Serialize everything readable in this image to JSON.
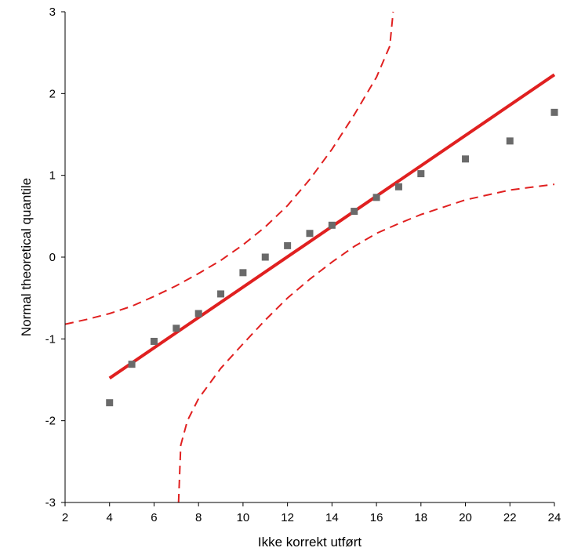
{
  "chart_data": {
    "type": "scatter",
    "title": "",
    "xlabel": "Ikke korrekt utført",
    "ylabel": "Normal theoretical quantile",
    "xlim": [
      2,
      24
    ],
    "ylim": [
      -3,
      3
    ],
    "xticks": [
      2,
      4,
      6,
      8,
      10,
      12,
      14,
      16,
      18,
      20,
      22,
      24
    ],
    "yticks": [
      -3,
      -2,
      -1,
      0,
      1,
      2,
      3
    ],
    "grid": false,
    "points": [
      {
        "x": 4,
        "y": -1.78
      },
      {
        "x": 5,
        "y": -1.31
      },
      {
        "x": 6,
        "y": -1.03
      },
      {
        "x": 7,
        "y": -0.87
      },
      {
        "x": 8,
        "y": -0.69
      },
      {
        "x": 9,
        "y": -0.45
      },
      {
        "x": 10,
        "y": -0.19
      },
      {
        "x": 11,
        "y": 0.0
      },
      {
        "x": 12,
        "y": 0.14
      },
      {
        "x": 13,
        "y": 0.29
      },
      {
        "x": 14,
        "y": 0.39
      },
      {
        "x": 15,
        "y": 0.56
      },
      {
        "x": 16,
        "y": 0.73
      },
      {
        "x": 17,
        "y": 0.86
      },
      {
        "x": 18,
        "y": 1.02
      },
      {
        "x": 20,
        "y": 1.2
      },
      {
        "x": 22,
        "y": 1.42
      },
      {
        "x": 24,
        "y": 1.77
      }
    ],
    "fit_line": {
      "x": [
        4,
        24
      ],
      "y": [
        -1.48,
        2.23
      ]
    },
    "upper_band": [
      {
        "x": 2,
        "y": -0.82
      },
      {
        "x": 3,
        "y": -0.76
      },
      {
        "x": 4,
        "y": -0.69
      },
      {
        "x": 5,
        "y": -0.6
      },
      {
        "x": 6,
        "y": -0.48
      },
      {
        "x": 7,
        "y": -0.35
      },
      {
        "x": 8,
        "y": -0.2
      },
      {
        "x": 9,
        "y": -0.04
      },
      {
        "x": 10,
        "y": 0.15
      },
      {
        "x": 11,
        "y": 0.37
      },
      {
        "x": 12,
        "y": 0.63
      },
      {
        "x": 13,
        "y": 0.95
      },
      {
        "x": 14,
        "y": 1.32
      },
      {
        "x": 15,
        "y": 1.74
      },
      {
        "x": 16,
        "y": 2.2
      },
      {
        "x": 16.6,
        "y": 2.58
      },
      {
        "x": 16.75,
        "y": 3.0
      }
    ],
    "lower_band": [
      {
        "x": 7.1,
        "y": -3.0
      },
      {
        "x": 7.2,
        "y": -2.3
      },
      {
        "x": 7.5,
        "y": -2.0
      },
      {
        "x": 8,
        "y": -1.73
      },
      {
        "x": 9,
        "y": -1.36
      },
      {
        "x": 10,
        "y": -1.06
      },
      {
        "x": 11,
        "y": -0.77
      },
      {
        "x": 12,
        "y": -0.5
      },
      {
        "x": 13,
        "y": -0.27
      },
      {
        "x": 14,
        "y": -0.06
      },
      {
        "x": 15,
        "y": 0.13
      },
      {
        "x": 16,
        "y": 0.29
      },
      {
        "x": 17,
        "y": 0.41
      },
      {
        "x": 18,
        "y": 0.52
      },
      {
        "x": 20,
        "y": 0.7
      },
      {
        "x": 22,
        "y": 0.82
      },
      {
        "x": 24,
        "y": 0.89
      }
    ],
    "colors": {
      "fit_line": "#e02020",
      "band": "#e02020",
      "point": "#6a6a6a",
      "axis": "#000000"
    }
  }
}
